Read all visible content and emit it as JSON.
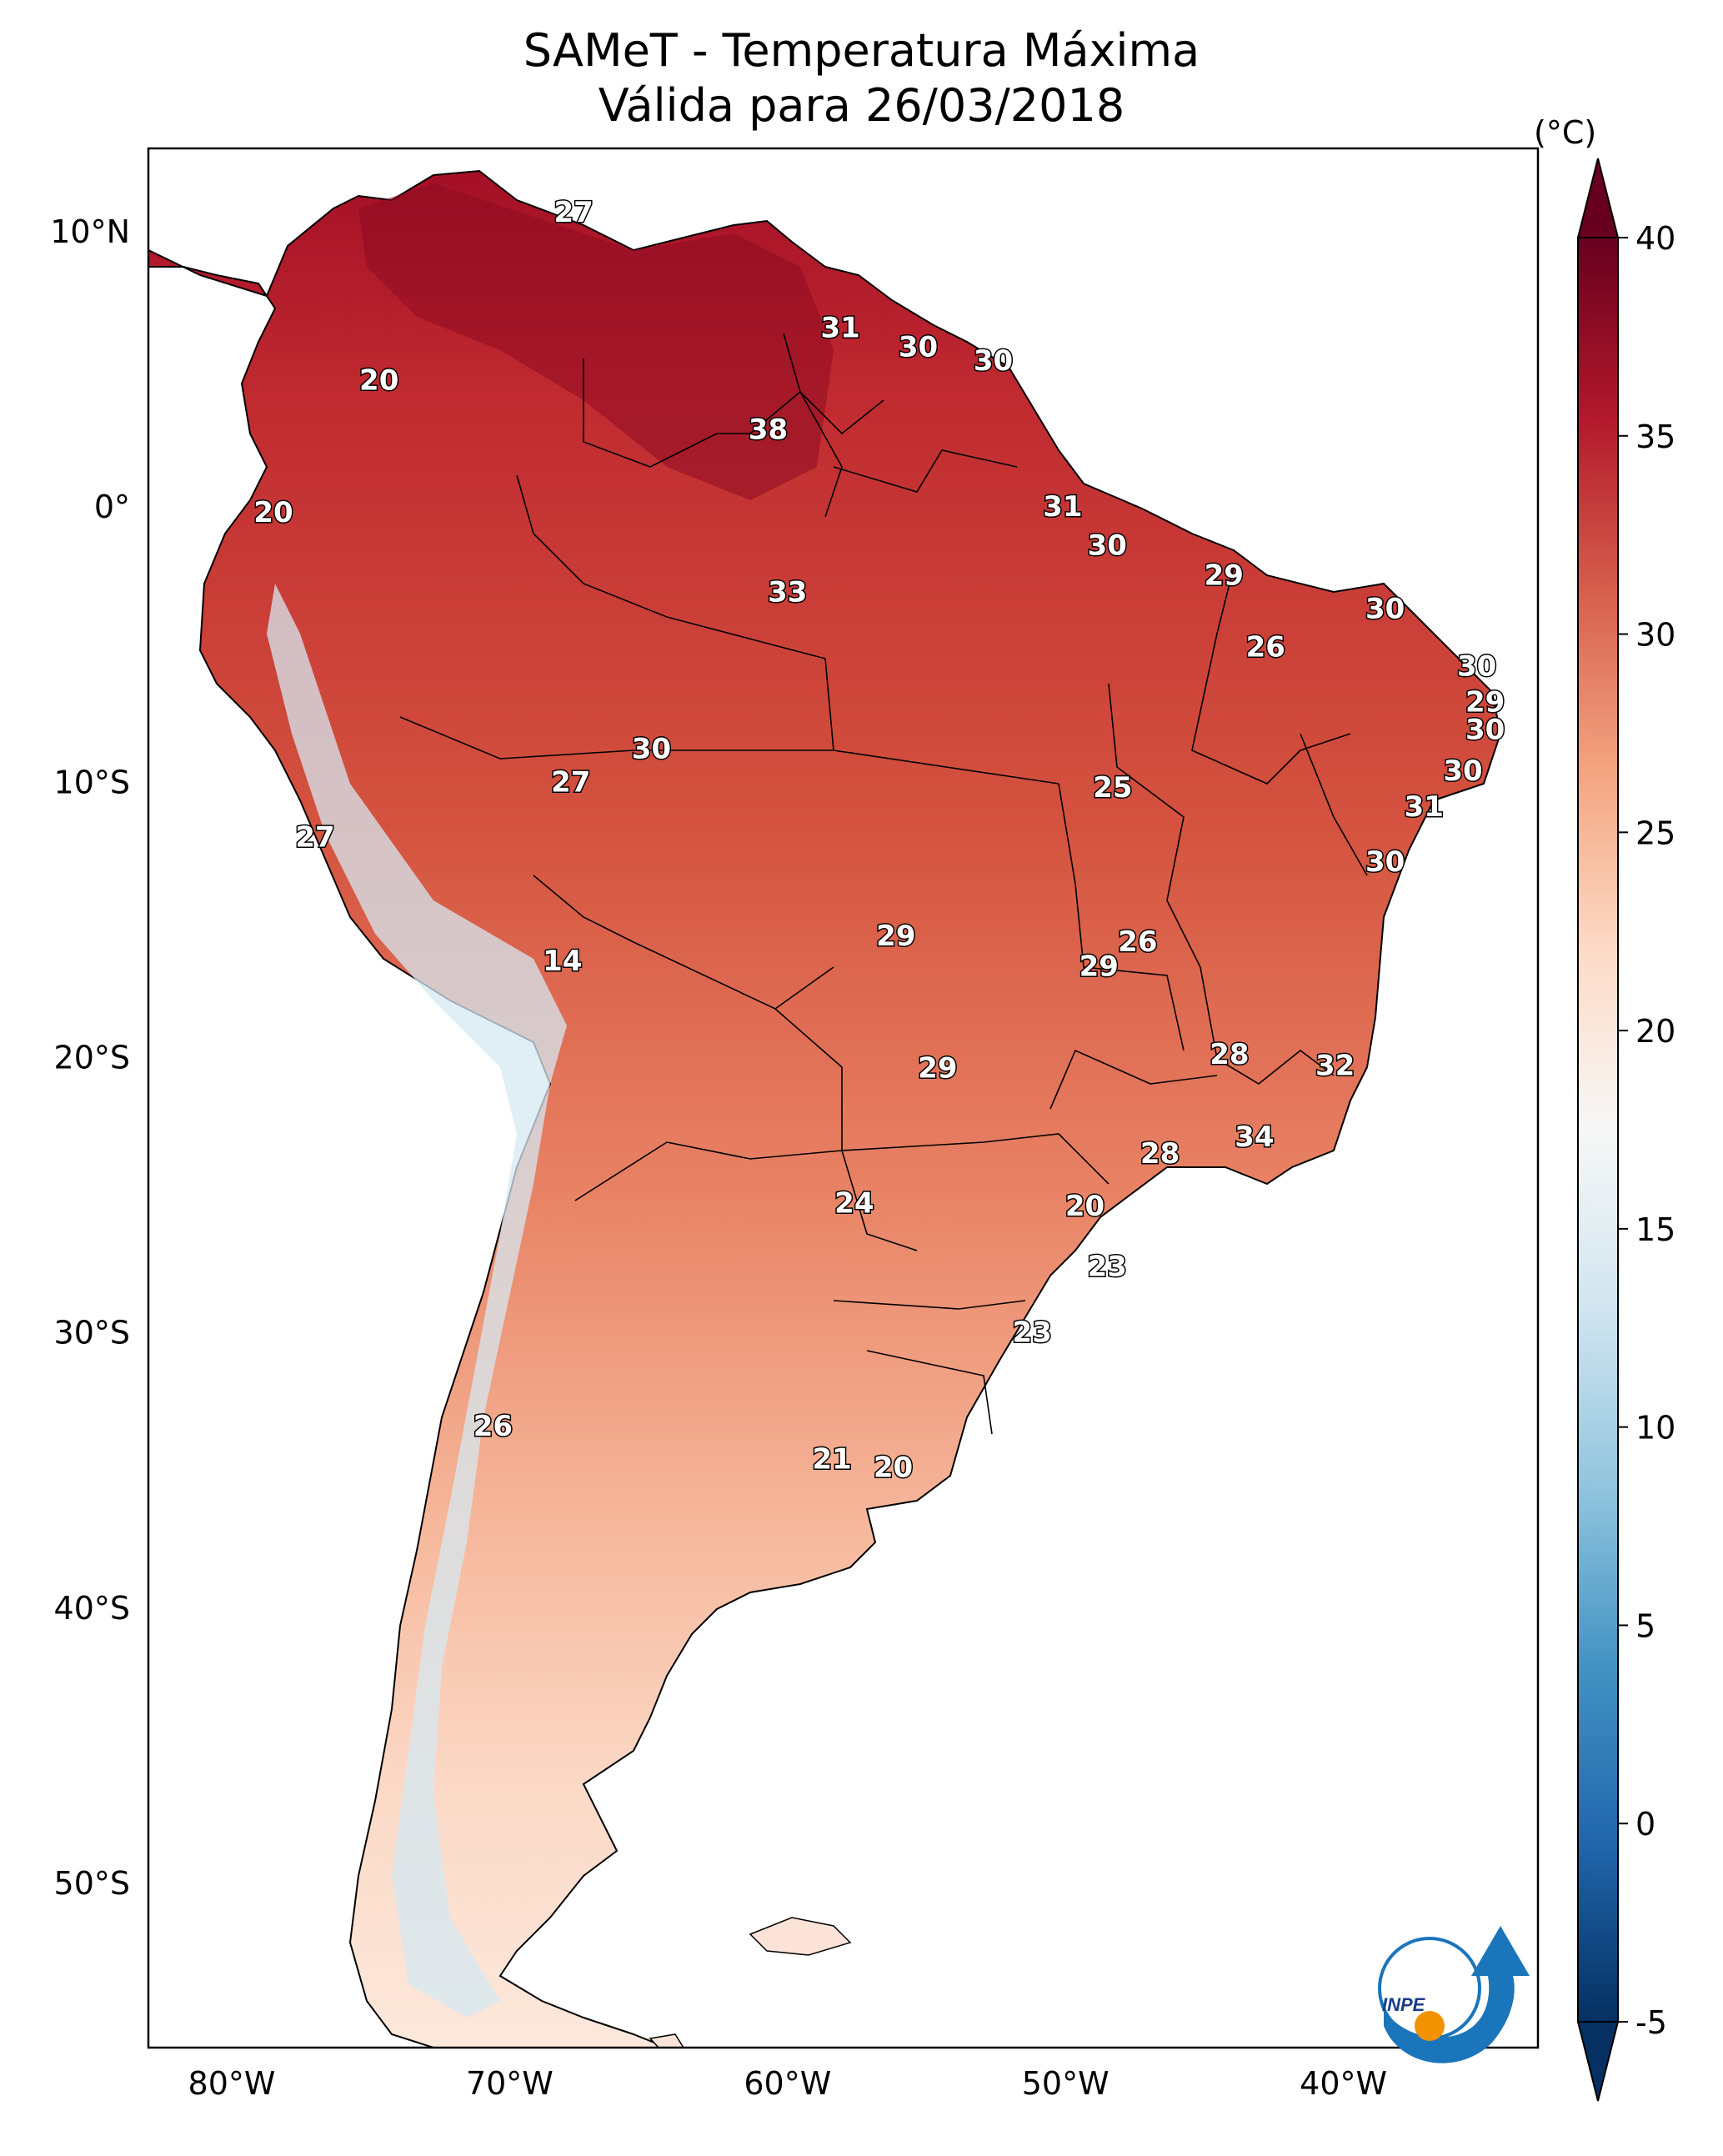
{
  "title": {
    "line1": "SAMeT - Temperatura Máxima",
    "line2": "Válida para 26/03/2018"
  },
  "colorbar": {
    "unit": "(°C)",
    "ticks": [
      "40",
      "35",
      "30",
      "25",
      "20",
      "15",
      "10",
      "5",
      "0",
      "-5"
    ],
    "tick_values": [
      40,
      35,
      30,
      25,
      20,
      15,
      10,
      5,
      0,
      -5
    ],
    "range": [
      -5,
      40
    ],
    "colors": [
      "#053061",
      "#2166ac",
      "#4393c3",
      "#92c5de",
      "#d1e5f0",
      "#f7f7f7",
      "#fddbc7",
      "#f4a582",
      "#d6604d",
      "#b2182b",
      "#67001f"
    ]
  },
  "axes": {
    "lat_labels": [
      "10°N",
      "0°",
      "10°S",
      "20°S",
      "30°S",
      "40°S",
      "50°S"
    ],
    "lat_values": [
      10,
      0,
      -10,
      -20,
      -30,
      -40,
      -50
    ],
    "lon_labels": [
      "80°W",
      "70°W",
      "60°W",
      "50°W",
      "40°W"
    ],
    "lon_values": [
      -80,
      -70,
      -60,
      -50,
      -40
    ],
    "lon_range": [
      -83,
      -33
    ],
    "lat_range": [
      -56,
      13
    ]
  },
  "station_values": [
    {
      "value": "27",
      "lon": -67.7,
      "lat": 10.7
    },
    {
      "value": "31",
      "lon": -58.1,
      "lat": 6.5
    },
    {
      "value": "30",
      "lon": -55.3,
      "lat": 5.8
    },
    {
      "value": "30",
      "lon": -52.6,
      "lat": 5.3
    },
    {
      "value": "20",
      "lon": -74.7,
      "lat": 4.6
    },
    {
      "value": "38",
      "lon": -60.7,
      "lat": 2.8
    },
    {
      "value": "31",
      "lon": -50.1,
      "lat": 0.0
    },
    {
      "value": "20",
      "lon": -78.5,
      "lat": -0.2
    },
    {
      "value": "30",
      "lon": -48.5,
      "lat": -1.4
    },
    {
      "value": "29",
      "lon": -44.3,
      "lat": -2.5
    },
    {
      "value": "33",
      "lon": -60.0,
      "lat": -3.1
    },
    {
      "value": "30",
      "lon": -38.5,
      "lat": -3.7
    },
    {
      "value": "26",
      "lon": -42.8,
      "lat": -5.1
    },
    {
      "value": "30",
      "lon": -35.2,
      "lat": -5.8
    },
    {
      "value": "29",
      "lon": -34.9,
      "lat": -7.1
    },
    {
      "value": "30",
      "lon": -34.9,
      "lat": -8.1
    },
    {
      "value": "30",
      "lon": -64.9,
      "lat": -8.8
    },
    {
      "value": "27",
      "lon": -67.8,
      "lat": -10.0
    },
    {
      "value": "25",
      "lon": -48.3,
      "lat": -10.2
    },
    {
      "value": "30",
      "lon": -35.7,
      "lat": -9.6
    },
    {
      "value": "31",
      "lon": -37.1,
      "lat": -10.9
    },
    {
      "value": "27",
      "lon": -77.0,
      "lat": -12.0
    },
    {
      "value": "30",
      "lon": -38.5,
      "lat": -12.9
    },
    {
      "value": "26",
      "lon": -47.4,
      "lat": -15.8
    },
    {
      "value": "29",
      "lon": -56.1,
      "lat": -15.6
    },
    {
      "value": "14",
      "lon": -68.1,
      "lat": -16.5
    },
    {
      "value": "29",
      "lon": -48.8,
      "lat": -16.7
    },
    {
      "value": "28",
      "lon": -44.1,
      "lat": -19.9
    },
    {
      "value": "29",
      "lon": -54.6,
      "lat": -20.4
    },
    {
      "value": "32",
      "lon": -40.3,
      "lat": -20.3
    },
    {
      "value": "34",
      "lon": -43.2,
      "lat": -22.9
    },
    {
      "value": "28",
      "lon": -46.6,
      "lat": -23.5
    },
    {
      "value": "20",
      "lon": -49.3,
      "lat": -25.4
    },
    {
      "value": "24",
      "lon": -57.6,
      "lat": -25.3
    },
    {
      "value": "23",
      "lon": -48.5,
      "lat": -27.6
    },
    {
      "value": "23",
      "lon": -51.2,
      "lat": -30.0
    },
    {
      "value": "26",
      "lon": -70.6,
      "lat": -33.4
    },
    {
      "value": "21",
      "lon": -58.4,
      "lat": -34.6
    },
    {
      "value": "20",
      "lon": -56.2,
      "lat": -34.9
    }
  ],
  "logo": {
    "text": "INPE"
  }
}
